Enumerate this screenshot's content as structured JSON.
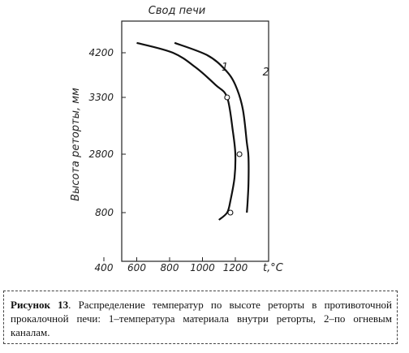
{
  "chart_data": {
    "type": "line",
    "title": "Свод печи",
    "xlabel": "t,°C",
    "ylabel": "Высота реторты, мм",
    "x_ticks": [
      "400",
      "600",
      "800",
      "1000",
      "1200"
    ],
    "y_ticks": [
      "4200",
      "3300",
      "2800",
      "800"
    ],
    "series": [
      {
        "name": "1",
        "points": [
          {
            "x": 600,
            "y": 4400
          },
          {
            "x": 820,
            "y": 4200
          },
          {
            "x": 960,
            "y": 3900
          },
          {
            "x": 1080,
            "y": 3550
          },
          {
            "x": 1150,
            "y": 3300
          },
          {
            "x": 1185,
            "y": 3000
          },
          {
            "x": 1200,
            "y": 2800
          },
          {
            "x": 1195,
            "y": 2000
          },
          {
            "x": 1170,
            "y": 1200
          },
          {
            "x": 1150,
            "y": 800
          },
          {
            "x": 1100,
            "y": 550
          }
        ]
      },
      {
        "name": "2",
        "points": [
          {
            "x": 830,
            "y": 4400
          },
          {
            "x": 1030,
            "y": 4150
          },
          {
            "x": 1140,
            "y": 3850
          },
          {
            "x": 1200,
            "y": 3550
          },
          {
            "x": 1245,
            "y": 3200
          },
          {
            "x": 1270,
            "y": 2900
          },
          {
            "x": 1280,
            "y": 2700
          },
          {
            "x": 1280,
            "y": 1800
          },
          {
            "x": 1275,
            "y": 1200
          },
          {
            "x": 1270,
            "y": 800
          }
        ]
      }
    ],
    "markers": [
      {
        "x": 1150,
        "y": 3300
      },
      {
        "x": 1225,
        "y": 2800
      },
      {
        "x": 1170,
        "y": 800
      }
    ]
  },
  "caption": {
    "label": "Рисунок 13",
    "text": ". Распределение температур по высоте реторты в противоточной прокалочной печи: 1–температура материала внутри реторты, 2–по огневым каналам."
  }
}
